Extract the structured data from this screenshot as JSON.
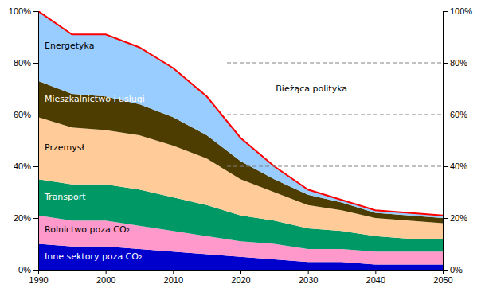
{
  "chart_data": {
    "type": "area",
    "stacked": true,
    "x": [
      1990,
      1995,
      2000,
      2005,
      2010,
      2015,
      2020,
      2025,
      2030,
      2035,
      2040,
      2045,
      2050
    ],
    "series": [
      {
        "name": "Inne sektory poza CO₂",
        "type": "area",
        "color": "#0000cc",
        "values": [
          10,
          9,
          9,
          8,
          7,
          6,
          5,
          4,
          3,
          3,
          2,
          2,
          2
        ]
      },
      {
        "name": "Rolnictwo poza CO₂",
        "type": "area",
        "color": "#ff99cc",
        "values": [
          11,
          10,
          10,
          9,
          8,
          7,
          6,
          6,
          5,
          5,
          5,
          5,
          5
        ]
      },
      {
        "name": "Transport",
        "type": "area",
        "color": "#009966",
        "values": [
          14,
          14,
          14,
          14,
          13,
          12,
          10,
          9,
          8,
          7,
          6,
          5,
          5
        ]
      },
      {
        "name": "Przemysł",
        "type": "area",
        "color": "#ffcc99",
        "values": [
          24,
          22,
          21,
          21,
          20,
          18,
          14,
          11,
          9,
          8,
          7,
          7,
          6
        ]
      },
      {
        "name": "Mieszkalnictwo i usługi",
        "type": "area",
        "color": "#4d3d00",
        "values": [
          14,
          13,
          13,
          12,
          11,
          9,
          7,
          5,
          4,
          3,
          2,
          2,
          2
        ]
      },
      {
        "name": "Energetyka",
        "type": "area",
        "color": "#99ccff",
        "values": [
          27,
          23,
          24,
          22,
          19,
          15,
          9,
          5,
          2,
          1,
          1,
          1,
          1
        ]
      },
      {
        "name": "Bieżąca polityka",
        "type": "line",
        "color": "red",
        "values": [
          100,
          91,
          91,
          86,
          78,
          67,
          51,
          40,
          31,
          27,
          23,
          22,
          21
        ]
      },
      {
        "type": "line",
        "line_style": "dashed",
        "color": "gray",
        "x": [
          2018,
          2050
        ],
        "values": [
          80,
          80
        ]
      },
      {
        "type": "line",
        "line_style": "dashed",
        "color": "gray",
        "x": [
          2018,
          2050
        ],
        "values": [
          60,
          60
        ]
      },
      {
        "type": "line",
        "line_style": "dashed",
        "color": "gray",
        "x": [
          2018,
          2050
        ],
        "values": [
          40,
          40
        ]
      }
    ],
    "xlim": [
      1990,
      2050
    ],
    "xticks": [
      1990,
      2000,
      2010,
      2020,
      2030,
      2040,
      2050
    ],
    "ylim": [
      0,
      100
    ],
    "yticks": [
      {
        "value": 0,
        "label": "0%"
      },
      {
        "value": 20,
        "label": "20%"
      },
      {
        "value": 40,
        "label": "40%"
      },
      {
        "value": 60,
        "label": "60%"
      },
      {
        "value": 80,
        "label": "80%"
      },
      {
        "value": 100,
        "label": "100%"
      }
    ],
    "y2lim": [
      0,
      100
    ],
    "y2ticks": [
      {
        "value": 0,
        "label": "0%"
      },
      {
        "value": 20,
        "label": "20%"
      },
      {
        "value": 40,
        "label": "40%"
      },
      {
        "value": 60,
        "label": "60%"
      },
      {
        "value": 80,
        "label": "80%"
      },
      {
        "value": 100,
        "label": "100%"
      }
    ]
  }
}
